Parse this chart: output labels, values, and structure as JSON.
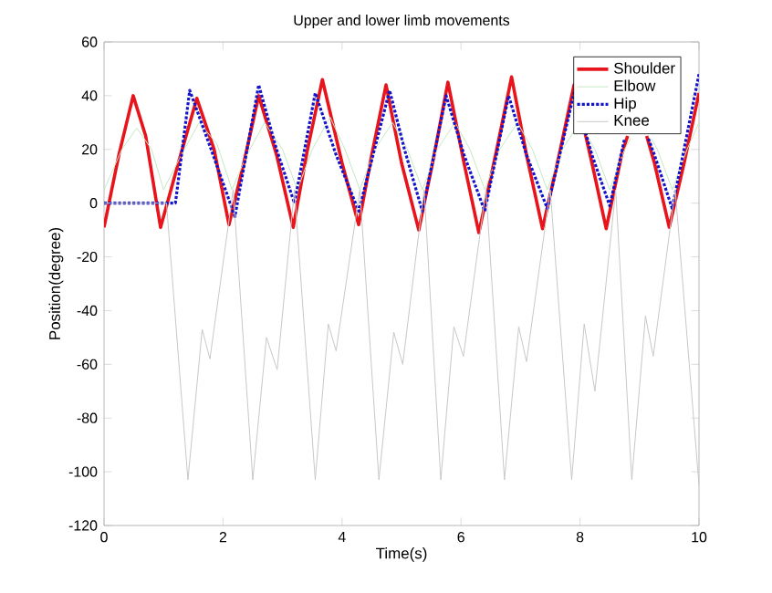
{
  "chart_data": {
    "type": "line",
    "title": "Upper and lower limb movements",
    "xlabel": "Time(s)",
    "ylabel": "Position(degree)",
    "xlim": [
      0,
      10
    ],
    "ylim": [
      -120,
      60
    ],
    "xticks": [
      0,
      2,
      4,
      6,
      8,
      10
    ],
    "yticks": [
      -120,
      -100,
      -80,
      -60,
      -40,
      -20,
      0,
      20,
      40,
      60
    ],
    "legend": "top right",
    "grid": false,
    "series": [
      {
        "name": "Shoulder",
        "color": "#e8141c",
        "line_style": "solid",
        "x": [
          0,
          0.25,
          0.49,
          0.7,
          0.95,
          1.25,
          1.56,
          1.85,
          2.1,
          2.35,
          2.6,
          2.9,
          3.18,
          3.42,
          3.67,
          4.0,
          4.28,
          4.5,
          4.74,
          5.0,
          5.29,
          5.55,
          5.78,
          6.05,
          6.3,
          6.6,
          6.85,
          7.1,
          7.37,
          7.65,
          7.9,
          8.2,
          8.44,
          8.7,
          8.8,
          8.95,
          9.12,
          9.25,
          9.5,
          9.75,
          10
        ],
        "values": [
          -9,
          18,
          40,
          25,
          -9,
          15,
          39,
          20,
          -8,
          15,
          40,
          18,
          -9,
          20,
          46,
          15,
          -8,
          18,
          44,
          15,
          -10,
          18,
          45,
          15,
          -11,
          20,
          47,
          18,
          -9.5,
          18,
          44,
          15,
          -9.5,
          18,
          25,
          null,
          25,
          15,
          -9,
          15,
          41
        ]
      },
      {
        "name": "Elbow",
        "color": "#c4e8c4",
        "line_style": "solid",
        "x": [
          0,
          0.3,
          0.55,
          0.8,
          1.0,
          1.3,
          1.6,
          1.9,
          2.15,
          2.4,
          2.7,
          3.0,
          3.25,
          3.5,
          3.8,
          4.05,
          4.3,
          4.55,
          4.85,
          5.1,
          5.35,
          5.6,
          5.9,
          6.15,
          6.4,
          6.65,
          6.95,
          7.2,
          7.45,
          7.7,
          8.0,
          8.25,
          8.5,
          8.75,
          8.85,
          9.05,
          9.2,
          9.3,
          9.55,
          9.8,
          10
        ],
        "values": [
          5,
          20,
          28,
          20,
          5,
          18,
          30,
          22,
          5,
          18,
          30,
          20,
          5,
          20,
          32,
          20,
          5,
          20,
          30,
          20,
          5,
          20,
          30,
          20,
          5,
          20,
          30,
          20,
          5,
          20,
          30,
          20,
          5,
          20,
          24,
          null,
          24,
          20,
          5,
          20,
          30
        ]
      },
      {
        "name": "Hip",
        "color": "#1414c8",
        "line_style": "dotted",
        "x": [
          0,
          0.6,
          1.2,
          1.44,
          1.8,
          2.2,
          2.6,
          2.9,
          3.2,
          3.55,
          3.9,
          4.28,
          4.8,
          5.05,
          5.35,
          5.75,
          6.05,
          6.4,
          6.8,
          7.1,
          7.45,
          7.9,
          8.2,
          8.5,
          8.75,
          8.95,
          9.15,
          9.25,
          9.55,
          10
        ],
        "values": [
          0,
          0,
          0,
          42,
          20,
          -5,
          44,
          20,
          0,
          41,
          18,
          -3,
          42,
          20,
          -3,
          40,
          18,
          -3,
          40,
          18,
          -2,
          41,
          18,
          -1,
          24,
          null,
          24,
          18,
          -2,
          48
        ]
      },
      {
        "name": "Knee",
        "color": "#c8c8c8",
        "line_style": "solid",
        "x": [
          0,
          0.5,
          1.05,
          1.41,
          1.65,
          1.78,
          2.17,
          2.5,
          2.73,
          2.91,
          3.2,
          3.55,
          3.77,
          3.9,
          4.3,
          4.62,
          4.87,
          5.02,
          5.38,
          5.66,
          5.88,
          6.04,
          6.42,
          6.73,
          6.97,
          7.1,
          7.5,
          7.86,
          8.07,
          8.25,
          8.6,
          8.87,
          9.1,
          9.23,
          9.6,
          10
        ],
        "values": [
          0,
          0,
          0,
          -103,
          -47,
          -58,
          5,
          -103,
          -50,
          -62,
          5,
          -103,
          -45,
          -55,
          5,
          -103,
          -48,
          -60,
          5,
          -103,
          -46,
          -57,
          5,
          -103,
          -46,
          -59,
          5,
          -103,
          -45,
          -70,
          5,
          -103,
          -42,
          -57,
          5,
          -105
        ]
      }
    ]
  }
}
